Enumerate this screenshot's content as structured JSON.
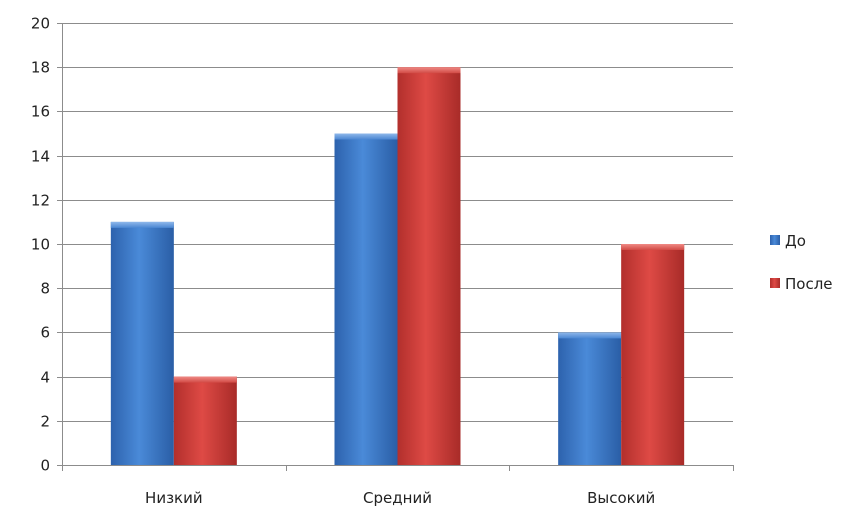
{
  "chart_data": {
    "type": "bar",
    "categories": [
      "Низкий",
      "Средний",
      "Высокий"
    ],
    "series": [
      {
        "name": "До",
        "values": [
          11,
          15,
          6
        ],
        "color": "#3a78c8"
      },
      {
        "name": "После",
        "values": [
          4,
          18,
          10
        ],
        "color": "#c93a37"
      }
    ],
    "ylim": [
      0,
      20
    ],
    "yticks": [
      0,
      2,
      4,
      6,
      8,
      10,
      12,
      14,
      16,
      18,
      20
    ],
    "grid": true,
    "legend": "right",
    "title": "",
    "xlabel": "",
    "ylabel": ""
  }
}
